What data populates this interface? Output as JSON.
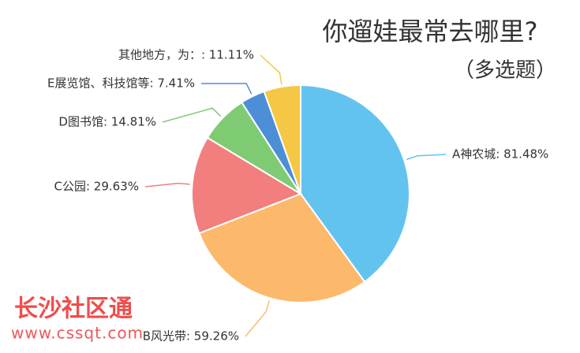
{
  "chart_data": {
    "type": "pie",
    "title": "你遛娃最常去哪里?",
    "subtitle": "（多选题）",
    "values": [
      81.48,
      59.26,
      29.63,
      14.81,
      7.41,
      11.11
    ],
    "value_labels": [
      "A神农城: 81.48%",
      "B风光带: 59.26%",
      "C公园: 29.63%",
      "D图书馆: 14.81%",
      "E展览馆、科技馆等: 7.41%",
      "其他地方，为：: 11.11%"
    ],
    "colors": [
      "#63c3ef",
      "#fcb96b",
      "#f27e7e",
      "#7fcb73",
      "#4d8fd6",
      "#f6c744"
    ]
  },
  "watermark": {
    "name": "长沙社区通",
    "url": "www.cssqt.com"
  }
}
